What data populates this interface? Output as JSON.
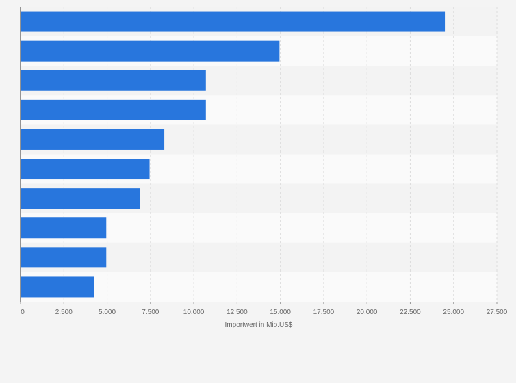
{
  "chart_data": {
    "type": "bar",
    "orientation": "horizontal",
    "categories": [
      "",
      "",
      "",
      "",
      "",
      "",
      "",
      "",
      "",
      ""
    ],
    "values": [
      24500,
      14950,
      10700,
      10700,
      8300,
      7450,
      6900,
      4950,
      4950,
      4250
    ],
    "xlabel": "Importwert in Mio.US$",
    "ylabel": "",
    "xlim": [
      0,
      27500
    ],
    "xticks": [
      0,
      2500,
      5000,
      7500,
      10000,
      12500,
      15000,
      17500,
      20000,
      22500,
      25000,
      27500
    ],
    "xtick_labels": [
      "0",
      "2.500",
      "5.000",
      "7.500",
      "10.000",
      "12.500",
      "15.000",
      "17.500",
      "20.000",
      "22.500",
      "25.000",
      "27.500"
    ],
    "grid": "vertical",
    "legend": "none",
    "colors": {
      "bar": "#2876dd",
      "band_light": "#fafafa",
      "band_dark": "#f3f3f3",
      "page_background": "#f4f4f4",
      "gridline": "#dcdcdc",
      "axis_line": "#333333"
    }
  }
}
